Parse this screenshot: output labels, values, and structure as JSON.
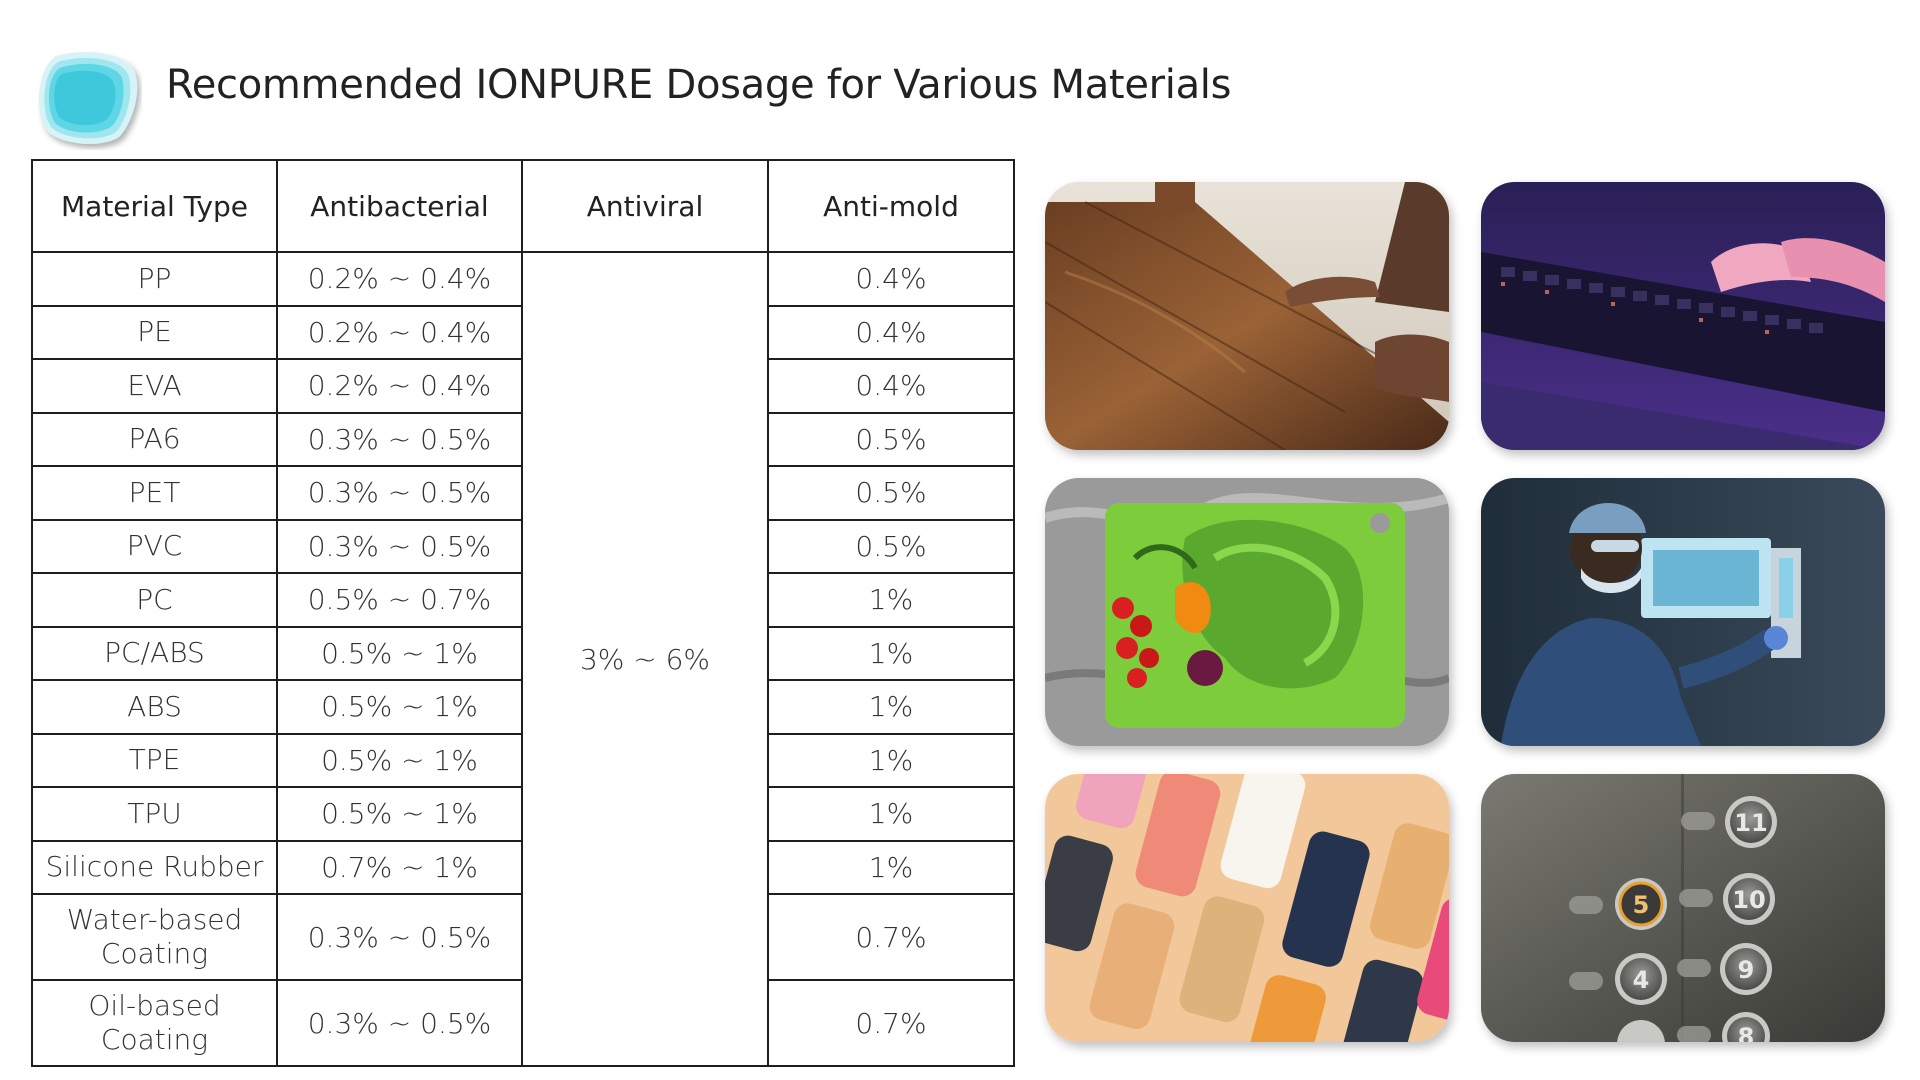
{
  "title": "Recommended IONPURE Dosage for Various Materials",
  "logo": {
    "icon": "layered-teal-shape-logo",
    "color": "#3fd0e0"
  },
  "table": {
    "headers": [
      "Material Type",
      "Antibacterial",
      "Antiviral",
      "Anti-mold"
    ],
    "antiviral_all": "3% ~ 6%",
    "rows": [
      {
        "material": "PP",
        "antibacterial": "0.2% ~ 0.4%",
        "antimold": "0.4%"
      },
      {
        "material": "PE",
        "antibacterial": "0.2% ~ 0.4%",
        "antimold": "0.4%"
      },
      {
        "material": "EVA",
        "antibacterial": "0.2% ~ 0.4%",
        "antimold": "0.4%"
      },
      {
        "material": "PA6",
        "antibacterial": "0.3% ~ 0.5%",
        "antimold": "0.5%"
      },
      {
        "material": "PET",
        "antibacterial": "0.3% ~ 0.5%",
        "antimold": "0.5%"
      },
      {
        "material": "PVC",
        "antibacterial": "0.3% ~ 0.5%",
        "antimold": "0.5%"
      },
      {
        "material": "PC",
        "antibacterial": "0.5% ~ 0.7%",
        "antimold": "1%"
      },
      {
        "material": "PC/ABS",
        "antibacterial": "0.5% ~ 1%",
        "antimold": "1%"
      },
      {
        "material": "ABS",
        "antibacterial": "0.5% ~ 1%",
        "antimold": "1%"
      },
      {
        "material": "TPE",
        "antibacterial": "0.5% ~ 1%",
        "antimold": "1%"
      },
      {
        "material": "TPU",
        "antibacterial": "0.5% ~ 1%",
        "antimold": "1%"
      },
      {
        "material": "Silicone Rubber",
        "antibacterial": "0.7% ~ 1%",
        "antimold": "1%"
      },
      {
        "material_line1": "Water-based",
        "material_line2": "Coating",
        "antibacterial": "0.3% ~ 0.5%",
        "antimold": "0.7%"
      },
      {
        "material_line1": "Oil-based",
        "material_line2": "Coating",
        "antibacterial": "0.3% ~ 0.5%",
        "antimold": "0.7%"
      }
    ]
  },
  "photos": [
    {
      "icon": "wood-flooring-photo"
    },
    {
      "icon": "keyboard-photo"
    },
    {
      "icon": "cutting-board-vegetables-photo"
    },
    {
      "icon": "medical-worker-photo"
    },
    {
      "icon": "phone-cases-photo"
    },
    {
      "icon": "elevator-buttons-photo",
      "labels": [
        "11",
        "5",
        "10",
        "4",
        "9",
        "8"
      ]
    }
  ]
}
